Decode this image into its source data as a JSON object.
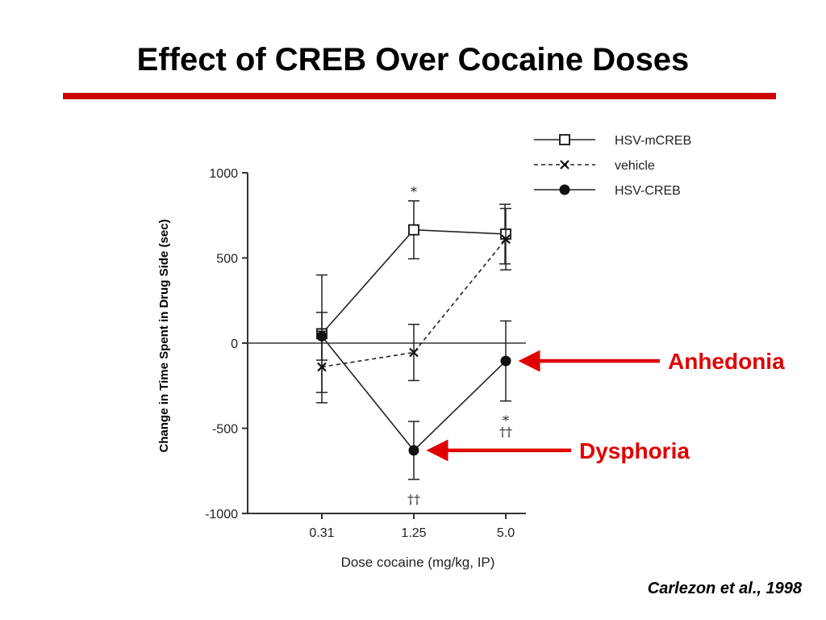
{
  "slide": {
    "title": "Effect of CREB Over Cocaine Doses",
    "citation": "Carlezon et al., 1998",
    "accent_color": "#cc0000"
  },
  "chart_data": {
    "type": "line",
    "xlabel": "Dose cocaine (mg/kg, IP)",
    "ylabel": "Change in Time Spent in Drug Side (sec)",
    "categories": [
      "0.31",
      "1.25",
      "5.0"
    ],
    "ylim": [
      -1000,
      1000
    ],
    "yticks": [
      1000,
      500,
      0,
      -500,
      -1000
    ],
    "grid": false,
    "zero_line": true,
    "legend_position": "top-right",
    "series": [
      {
        "name": "HSV-mCREB",
        "marker": "open-square",
        "line": "solid",
        "values": [
          55,
          665,
          640
        ],
        "errors": [
          345,
          170,
          175
        ]
      },
      {
        "name": "vehicle",
        "marker": "x",
        "line": "dashed",
        "values": [
          -140,
          -55,
          610
        ],
        "errors": [
          210,
          165,
          180
        ]
      },
      {
        "name": "HSV-CREB",
        "marker": "filled-circle",
        "line": "solid",
        "values": [
          40,
          -630,
          -105
        ],
        "errors": [
          140,
          170,
          235
        ]
      }
    ],
    "significance": [
      {
        "category": "1.25",
        "position": "above",
        "text": "*"
      },
      {
        "category": "1.25",
        "position": "below",
        "text": "††"
      },
      {
        "category": "5.0",
        "position": "below",
        "text": "*"
      },
      {
        "category": "5.0",
        "position": "below2",
        "text": "††"
      }
    ],
    "annotations": [
      {
        "label": "Anhedonia",
        "target_series": "HSV-CREB",
        "target_category": "5.0",
        "color": "#e00000"
      },
      {
        "label": "Dysphoria",
        "target_series": "HSV-CREB",
        "target_category": "1.25",
        "color": "#e00000"
      }
    ]
  }
}
